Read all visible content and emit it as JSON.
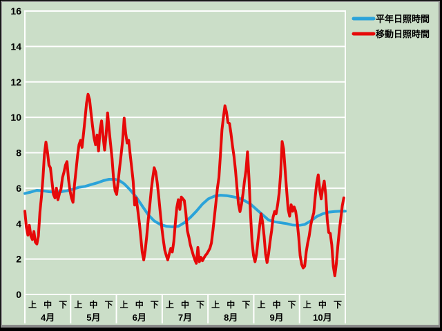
{
  "window": {
    "title": "sunshine duration chart"
  },
  "colors": {
    "background": "#cbdec8",
    "frame_black": "#000000",
    "frame_gray": "#8a8a8a",
    "grid": "#ffffff",
    "text": "#000000",
    "normal_line": "#2ba3d9",
    "moving_line": "#e60909"
  },
  "legend": {
    "items": [
      {
        "label": "平年日照時間",
        "color": "#2ba3d9"
      },
      {
        "label": "移動日照時間",
        "color": "#e60909"
      }
    ]
  },
  "chart_data": {
    "type": "line",
    "title": "",
    "xlabel": "",
    "ylabel": "",
    "ylim": [
      0,
      16
    ],
    "y_ticks": [
      0,
      2,
      4,
      6,
      8,
      10,
      12,
      14,
      16
    ],
    "grid": "horizontal white gridlines on green background",
    "legend_position": "top-right outside plot",
    "months": [
      {
        "label": "4月",
        "days": 30
      },
      {
        "label": "5月",
        "days": 31
      },
      {
        "label": "6月",
        "days": 30
      },
      {
        "label": "7月",
        "days": 31
      },
      {
        "label": "8月",
        "days": 31
      },
      {
        "label": "9月",
        "days": 30
      },
      {
        "label": "10月",
        "days": 31
      }
    ],
    "period_labels": [
      "上",
      "中",
      "下"
    ],
    "x_unit": "day index from April 1 (0) to October 31 (213)",
    "series": [
      {
        "name": "平年日照時間",
        "color": "#2ba3d9",
        "points": [
          [
            0,
            5.7
          ],
          [
            4,
            5.78
          ],
          [
            8,
            5.88
          ],
          [
            12,
            5.85
          ],
          [
            16,
            5.8
          ],
          [
            20,
            5.78
          ],
          [
            24,
            5.8
          ],
          [
            28,
            5.85
          ],
          [
            32,
            5.95
          ],
          [
            36,
            6.05
          ],
          [
            40,
            6.1
          ],
          [
            44,
            6.2
          ],
          [
            48,
            6.3
          ],
          [
            52,
            6.42
          ],
          [
            56,
            6.5
          ],
          [
            60,
            6.5
          ],
          [
            63,
            6.42
          ],
          [
            66,
            6.25
          ],
          [
            70,
            5.9
          ],
          [
            74,
            5.5
          ],
          [
            78,
            5.0
          ],
          [
            82,
            4.5
          ],
          [
            86,
            4.15
          ],
          [
            90,
            3.95
          ],
          [
            94,
            3.85
          ],
          [
            98,
            3.82
          ],
          [
            102,
            3.85
          ],
          [
            106,
            4.05
          ],
          [
            110,
            4.35
          ],
          [
            114,
            4.7
          ],
          [
            118,
            5.1
          ],
          [
            122,
            5.4
          ],
          [
            126,
            5.55
          ],
          [
            130,
            5.6
          ],
          [
            134,
            5.58
          ],
          [
            138,
            5.52
          ],
          [
            142,
            5.45
          ],
          [
            146,
            5.3
          ],
          [
            150,
            5.1
          ],
          [
            154,
            4.8
          ],
          [
            158,
            4.5
          ],
          [
            162,
            4.2
          ],
          [
            166,
            4.1
          ],
          [
            170,
            4.05
          ],
          [
            174,
            4.0
          ],
          [
            178,
            3.92
          ],
          [
            182,
            3.9
          ],
          [
            186,
            3.95
          ],
          [
            190,
            4.15
          ],
          [
            194,
            4.4
          ],
          [
            198,
            4.55
          ],
          [
            202,
            4.65
          ],
          [
            206,
            4.68
          ],
          [
            210,
            4.7
          ],
          [
            213,
            4.7
          ]
        ]
      },
      {
        "name": "移動日照時間",
        "color": "#e60909",
        "points": [
          [
            0,
            4.7
          ],
          [
            1,
            3.8
          ],
          [
            2,
            3.35
          ],
          [
            3,
            3.9
          ],
          [
            4,
            3.3
          ],
          [
            5,
            3.1
          ],
          [
            6,
            3.55
          ],
          [
            7,
            2.95
          ],
          [
            8,
            2.85
          ],
          [
            9,
            3.3
          ],
          [
            10,
            4.65
          ],
          [
            11,
            5.5
          ],
          [
            12,
            6.5
          ],
          [
            13,
            7.9
          ],
          [
            14,
            8.6
          ],
          [
            15,
            8.05
          ],
          [
            16,
            7.3
          ],
          [
            17,
            7.15
          ],
          [
            18,
            6.4
          ],
          [
            19,
            5.65
          ],
          [
            20,
            5.45
          ],
          [
            21,
            6.0
          ],
          [
            22,
            5.35
          ],
          [
            23,
            5.7
          ],
          [
            24,
            5.95
          ],
          [
            25,
            6.6
          ],
          [
            26,
            6.9
          ],
          [
            27,
            7.3
          ],
          [
            28,
            7.5
          ],
          [
            29,
            6.5
          ],
          [
            30,
            5.85
          ],
          [
            31,
            5.45
          ],
          [
            32,
            5.2
          ],
          [
            33,
            6.2
          ],
          [
            34,
            7.0
          ],
          [
            35,
            7.8
          ],
          [
            36,
            8.45
          ],
          [
            37,
            8.7
          ],
          [
            38,
            8.3
          ],
          [
            39,
            9.1
          ],
          [
            40,
            9.9
          ],
          [
            41,
            10.8
          ],
          [
            42,
            11.3
          ],
          [
            43,
            11.0
          ],
          [
            44,
            10.25
          ],
          [
            45,
            9.5
          ],
          [
            46,
            8.85
          ],
          [
            47,
            8.45
          ],
          [
            48,
            9.0
          ],
          [
            49,
            8.1
          ],
          [
            50,
            9.3
          ],
          [
            51,
            9.8
          ],
          [
            52,
            8.9
          ],
          [
            53,
            8.15
          ],
          [
            54,
            9.0
          ],
          [
            55,
            10.25
          ],
          [
            56,
            9.3
          ],
          [
            57,
            8.45
          ],
          [
            58,
            7.65
          ],
          [
            59,
            6.5
          ],
          [
            60,
            5.85
          ],
          [
            61,
            5.65
          ],
          [
            62,
            6.4
          ],
          [
            63,
            7.15
          ],
          [
            64,
            7.9
          ],
          [
            65,
            8.7
          ],
          [
            66,
            9.95
          ],
          [
            67,
            9.1
          ],
          [
            68,
            8.55
          ],
          [
            69,
            8.7
          ],
          [
            70,
            7.9
          ],
          [
            71,
            7.15
          ],
          [
            72,
            6.4
          ],
          [
            73,
            5.05
          ],
          [
            74,
            5.45
          ],
          [
            75,
            4.8
          ],
          [
            76,
            4.1
          ],
          [
            77,
            3.3
          ],
          [
            78,
            2.4
          ],
          [
            79,
            1.95
          ],
          [
            80,
            2.5
          ],
          [
            81,
            3.3
          ],
          [
            82,
            4.2
          ],
          [
            83,
            5.0
          ],
          [
            84,
            5.9
          ],
          [
            85,
            6.6
          ],
          [
            86,
            7.15
          ],
          [
            87,
            6.9
          ],
          [
            88,
            6.3
          ],
          [
            89,
            5.5
          ],
          [
            90,
            4.6
          ],
          [
            91,
            3.8
          ],
          [
            92,
            3.1
          ],
          [
            93,
            2.5
          ],
          [
            94,
            2.2
          ],
          [
            95,
            1.95
          ],
          [
            96,
            2.3
          ],
          [
            97,
            2.6
          ],
          [
            98,
            2.4
          ],
          [
            99,
            3.0
          ],
          [
            100,
            4.0
          ],
          [
            101,
            4.9
          ],
          [
            102,
            5.35
          ],
          [
            103,
            4.8
          ],
          [
            104,
            5.5
          ],
          [
            105,
            5.4
          ],
          [
            106,
            5.3
          ],
          [
            107,
            4.6
          ],
          [
            108,
            3.6
          ],
          [
            109,
            3.25
          ],
          [
            110,
            2.8
          ],
          [
            111,
            2.5
          ],
          [
            112,
            2.2
          ],
          [
            113,
            1.95
          ],
          [
            114,
            1.76
          ],
          [
            115,
            2.65
          ],
          [
            116,
            1.85
          ],
          [
            117,
            2.1
          ],
          [
            118,
            1.9
          ],
          [
            119,
            2.05
          ],
          [
            120,
            2.2
          ],
          [
            121,
            2.3
          ],
          [
            122,
            2.45
          ],
          [
            123,
            2.6
          ],
          [
            124,
            2.9
          ],
          [
            125,
            3.6
          ],
          [
            126,
            4.4
          ],
          [
            127,
            5.2
          ],
          [
            128,
            6.0
          ],
          [
            129,
            6.6
          ],
          [
            130,
            7.9
          ],
          [
            131,
            9.3
          ],
          [
            132,
            10.0
          ],
          [
            133,
            10.65
          ],
          [
            134,
            10.3
          ],
          [
            135,
            9.7
          ],
          [
            136,
            9.65
          ],
          [
            137,
            9.1
          ],
          [
            138,
            8.4
          ],
          [
            139,
            7.8
          ],
          [
            140,
            7.0
          ],
          [
            141,
            6.0
          ],
          [
            142,
            5.1
          ],
          [
            143,
            4.68
          ],
          [
            144,
            5.1
          ],
          [
            145,
            5.7
          ],
          [
            146,
            6.4
          ],
          [
            147,
            7.0
          ],
          [
            148,
            8.05
          ],
          [
            149,
            6.5
          ],
          [
            150,
            4.5
          ],
          [
            151,
            3.0
          ],
          [
            152,
            2.2
          ],
          [
            153,
            1.85
          ],
          [
            154,
            2.3
          ],
          [
            155,
            3.1
          ],
          [
            156,
            3.8
          ],
          [
            157,
            4.55
          ],
          [
            158,
            4.1
          ],
          [
            159,
            3.3
          ],
          [
            160,
            2.3
          ],
          [
            161,
            1.8
          ],
          [
            162,
            2.3
          ],
          [
            163,
            3.0
          ],
          [
            164,
            3.6
          ],
          [
            165,
            4.36
          ],
          [
            166,
            4.68
          ],
          [
            167,
            4.55
          ],
          [
            168,
            5.06
          ],
          [
            169,
            5.72
          ],
          [
            170,
            6.8
          ],
          [
            171,
            8.63
          ],
          [
            172,
            8.2
          ],
          [
            173,
            7.0
          ],
          [
            174,
            5.9
          ],
          [
            175,
            4.81
          ],
          [
            176,
            4.42
          ],
          [
            177,
            5.06
          ],
          [
            178,
            4.7
          ],
          [
            179,
            4.94
          ],
          [
            180,
            4.7
          ],
          [
            181,
            4.1
          ],
          [
            182,
            3.25
          ],
          [
            183,
            2.2
          ],
          [
            184,
            1.7
          ],
          [
            185,
            1.5
          ],
          [
            186,
            1.6
          ],
          [
            187,
            2.4
          ],
          [
            188,
            2.9
          ],
          [
            189,
            3.3
          ],
          [
            190,
            3.9
          ],
          [
            191,
            4.3
          ],
          [
            192,
            4.6
          ],
          [
            193,
            5.5
          ],
          [
            194,
            6.3
          ],
          [
            195,
            6.75
          ],
          [
            196,
            5.9
          ],
          [
            197,
            5.4
          ],
          [
            198,
            6.0
          ],
          [
            199,
            6.4
          ],
          [
            200,
            5.6
          ],
          [
            201,
            4.2
          ],
          [
            202,
            3.5
          ],
          [
            203,
            3.45
          ],
          [
            204,
            2.8
          ],
          [
            205,
            1.6
          ],
          [
            206,
            1.05
          ],
          [
            207,
            1.7
          ],
          [
            208,
            2.7
          ],
          [
            209,
            3.6
          ],
          [
            210,
            4.3
          ],
          [
            211,
            5.0
          ],
          [
            212,
            5.45
          ]
        ]
      }
    ]
  },
  "layout_values": {
    "y_tick_labels": [
      "0",
      "2",
      "4",
      "6",
      "8",
      "10",
      "12",
      "14",
      "16"
    ]
  }
}
